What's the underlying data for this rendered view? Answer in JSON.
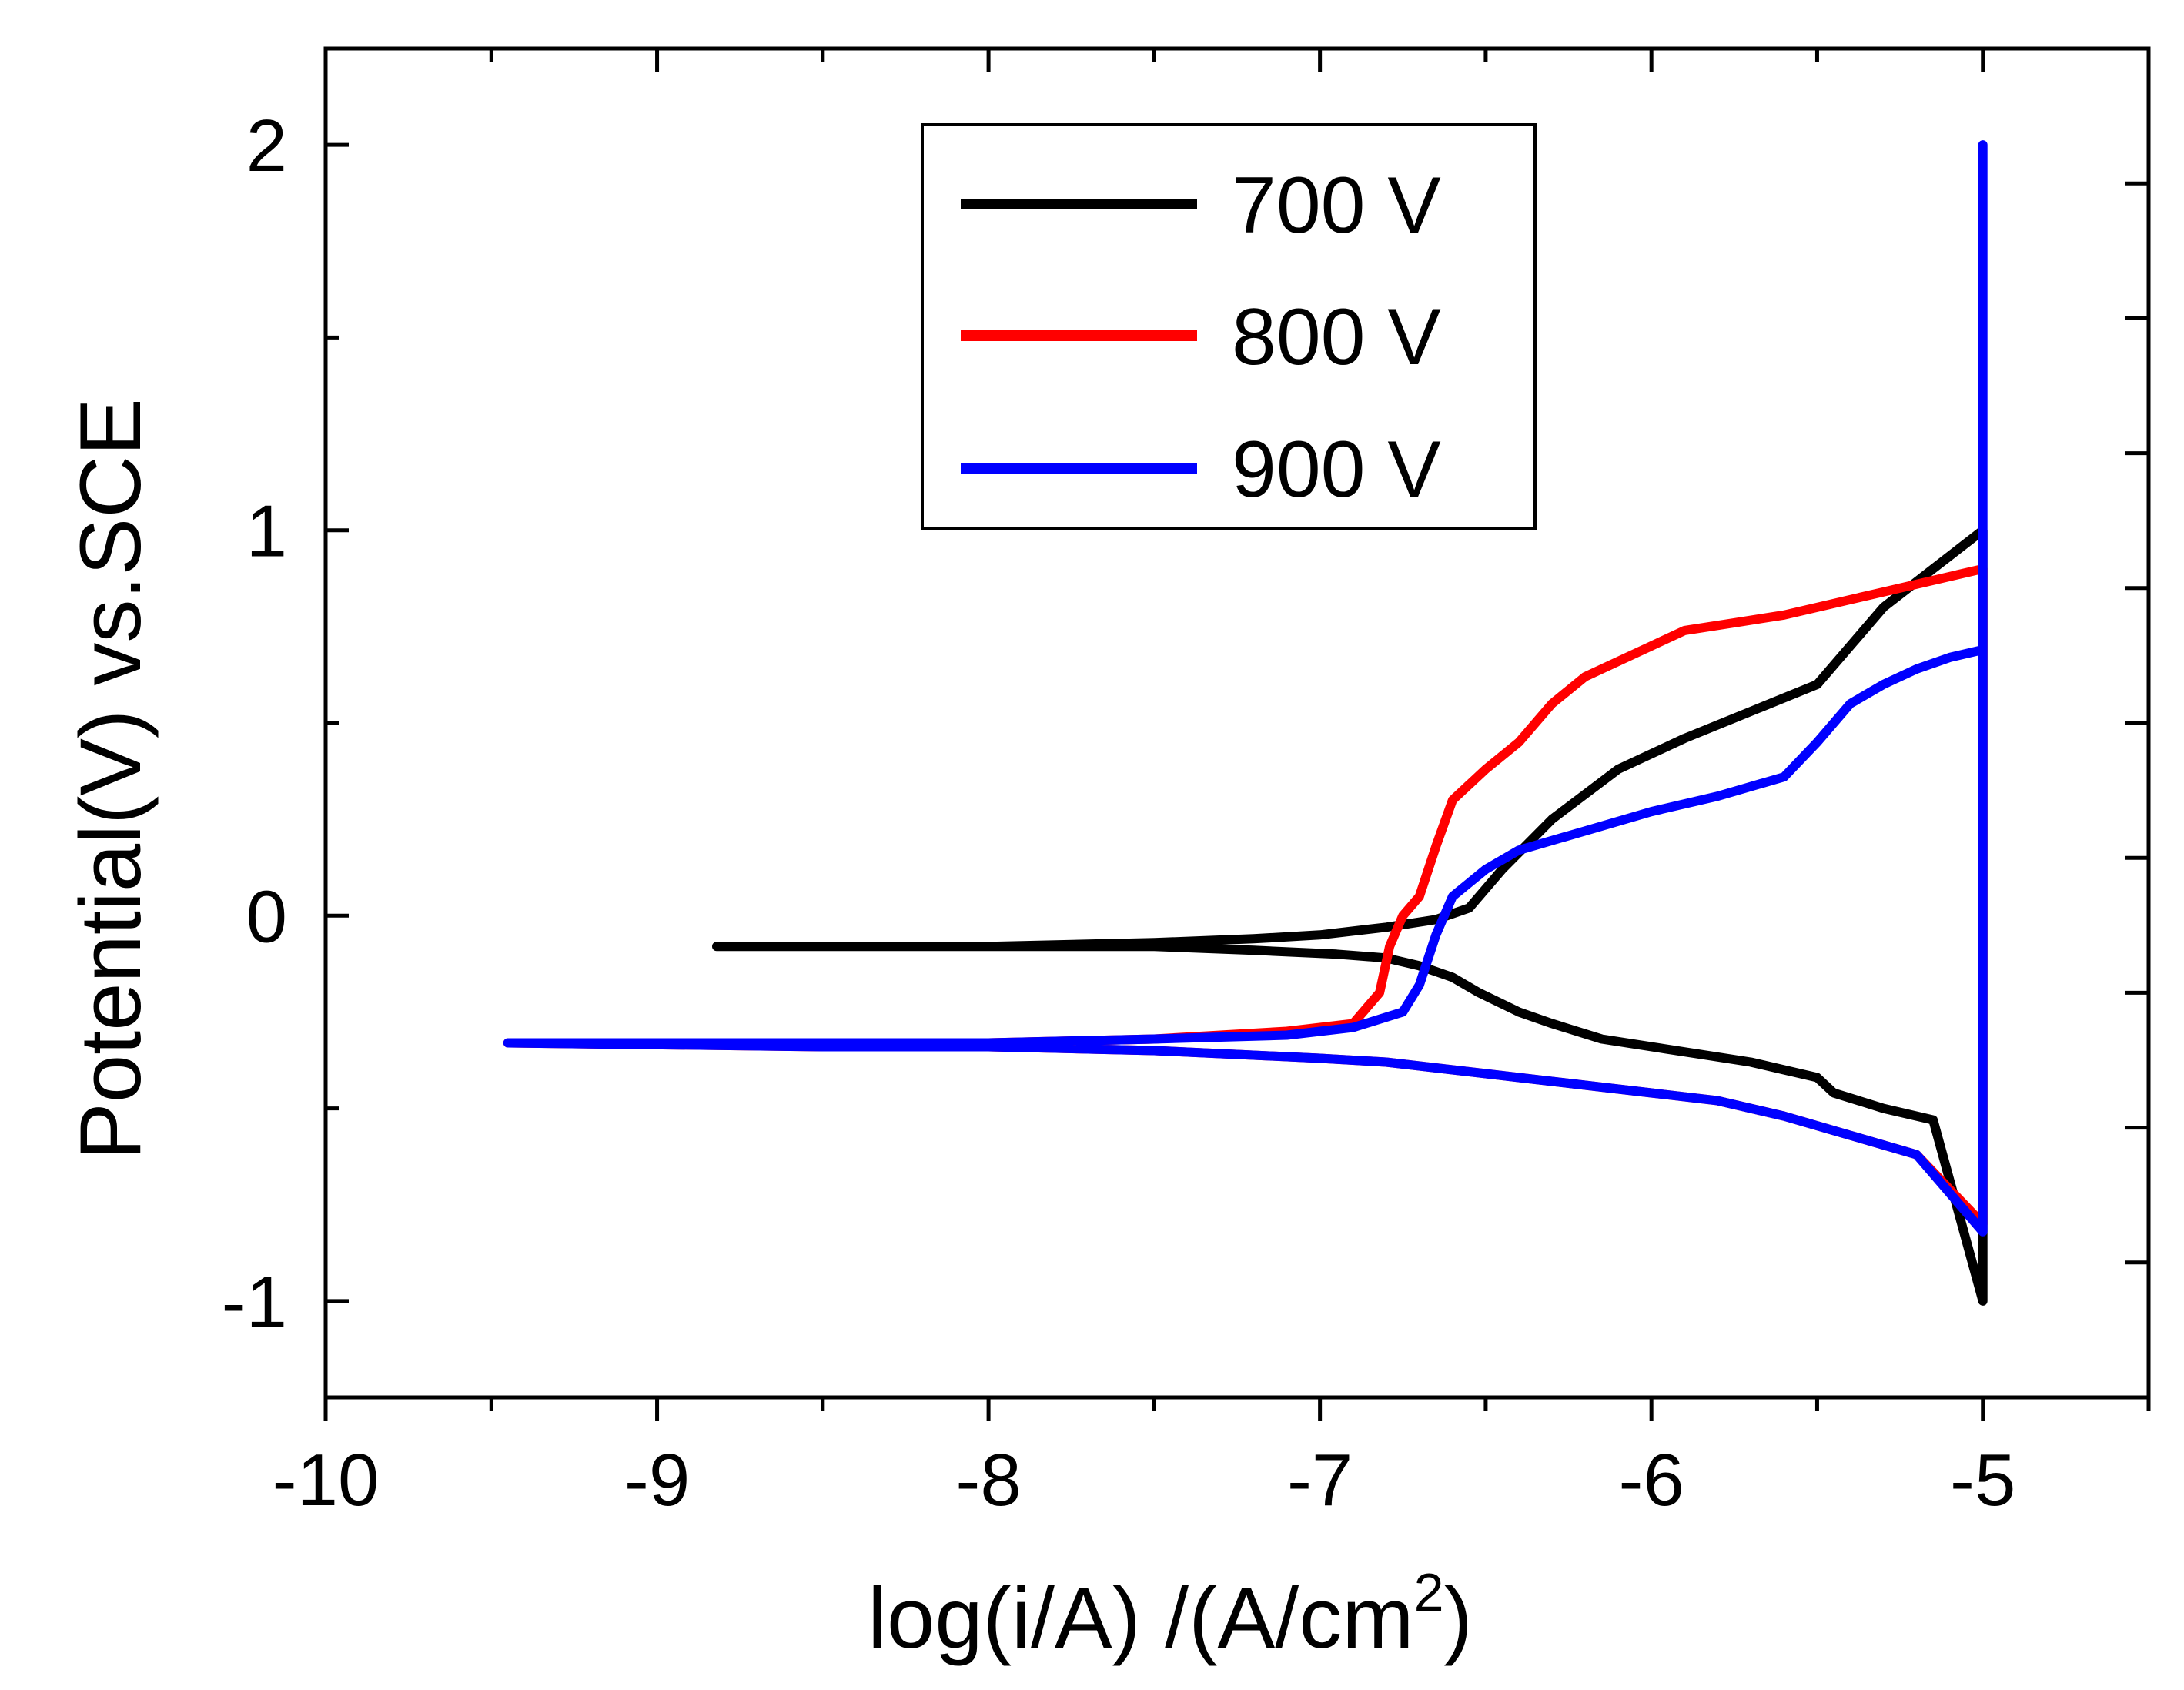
{
  "chart_data": {
    "type": "line",
    "title": "",
    "xlabel_main": "log(i/A) /(A/cm",
    "xlabel_sup": "2",
    "xlabel_close": ")",
    "ylabel": "Potential(V) vs.SCE",
    "xlim": [
      -10,
      -4.5
    ],
    "ylim": [
      -1.25,
      2.25
    ],
    "xticks": [
      -10,
      -9,
      -8,
      -7,
      -6,
      -5
    ],
    "xtick_labels": [
      "-10",
      "-9",
      "-8",
      "-7",
      "-6",
      "-5"
    ],
    "yticks": [
      -1,
      0,
      1,
      2
    ],
    "ytick_labels": [
      "-1",
      "0",
      "1",
      "2"
    ],
    "legend_position": "top-center",
    "series": [
      {
        "name": "700 V",
        "color": "#000000",
        "x": [
          -8.82,
          -8.0,
          -7.5,
          -7.2,
          -7.0,
          -6.8,
          -6.65,
          -6.55,
          -6.45,
          -6.3,
          -6.1,
          -5.9,
          -5.7,
          -5.5,
          -5.3,
          -5.15,
          -5.0,
          -5.0,
          -5.0,
          -5.15,
          -5.3,
          -5.45,
          -5.5,
          -5.6,
          -5.7,
          -5.85,
          -6.0,
          -6.15,
          -6.3,
          -6.4,
          -6.52,
          -6.6,
          -6.7,
          -6.8,
          -6.95,
          -7.2,
          -7.5,
          -8.0,
          -8.82
        ],
        "y": [
          -0.08,
          -0.08,
          -0.07,
          -0.06,
          -0.05,
          -0.03,
          -0.01,
          0.02,
          0.12,
          0.25,
          0.38,
          0.46,
          0.53,
          0.6,
          0.8,
          0.9,
          1.0,
          -0.55,
          -1.0,
          -0.53,
          -0.5,
          -0.46,
          -0.42,
          -0.4,
          -0.38,
          -0.36,
          -0.34,
          -0.32,
          -0.28,
          -0.25,
          -0.2,
          -0.16,
          -0.13,
          -0.11,
          -0.1,
          -0.09,
          -0.08,
          -0.08,
          -0.08
        ]
      },
      {
        "name": "800 V",
        "color": "#ff0000",
        "x": [
          -9.45,
          -8.5,
          -8.0,
          -7.5,
          -7.1,
          -6.9,
          -6.82,
          -6.79,
          -6.75,
          -6.7,
          -6.65,
          -6.6,
          -6.5,
          -6.4,
          -6.3,
          -6.2,
          -6.1,
          -6.0,
          -5.9,
          -5.75,
          -5.6,
          -5.5,
          -5.4,
          -5.3,
          -5.2,
          -5.0,
          -5.0,
          -5.0,
          -5.2,
          -5.4,
          -5.6,
          -5.8,
          -6.0,
          -6.2,
          -6.4,
          -6.6,
          -6.8,
          -7.0,
          -7.5,
          -8.0,
          -8.5,
          -9.45
        ],
        "y": [
          -0.33,
          -0.33,
          -0.33,
          -0.32,
          -0.3,
          -0.28,
          -0.2,
          -0.08,
          0.0,
          0.05,
          0.18,
          0.3,
          0.38,
          0.45,
          0.55,
          0.62,
          0.66,
          0.7,
          0.74,
          0.76,
          0.78,
          0.8,
          0.82,
          0.84,
          0.86,
          0.9,
          -0.7,
          -0.8,
          -0.62,
          -0.57,
          -0.52,
          -0.48,
          -0.46,
          -0.44,
          -0.42,
          -0.4,
          -0.38,
          -0.37,
          -0.35,
          -0.34,
          -0.34,
          -0.33
        ]
      },
      {
        "name": "900 V",
        "color": "#0000ff",
        "x": [
          -9.45,
          -8.5,
          -8.0,
          -7.5,
          -7.1,
          -6.9,
          -6.75,
          -6.7,
          -6.65,
          -6.6,
          -6.5,
          -6.4,
          -6.2,
          -6.0,
          -5.8,
          -5.6,
          -5.5,
          -5.4,
          -5.3,
          -5.2,
          -5.1,
          -5.0,
          -5.0,
          -5.0,
          -5.0,
          -5.2,
          -5.4,
          -5.6,
          -5.8,
          -6.0,
          -6.2,
          -6.4,
          -6.6,
          -6.8,
          -7.0,
          -7.5,
          -8.0,
          -8.5,
          -9.45
        ],
        "y": [
          -0.33,
          -0.33,
          -0.33,
          -0.32,
          -0.31,
          -0.29,
          -0.25,
          -0.18,
          -0.05,
          0.05,
          0.12,
          0.17,
          0.22,
          0.27,
          0.31,
          0.36,
          0.45,
          0.55,
          0.6,
          0.64,
          0.67,
          0.69,
          2.0,
          -0.69,
          -0.82,
          -0.62,
          -0.57,
          -0.52,
          -0.48,
          -0.46,
          -0.44,
          -0.42,
          -0.4,
          -0.38,
          -0.37,
          -0.35,
          -0.34,
          -0.34,
          -0.33
        ]
      }
    ]
  }
}
